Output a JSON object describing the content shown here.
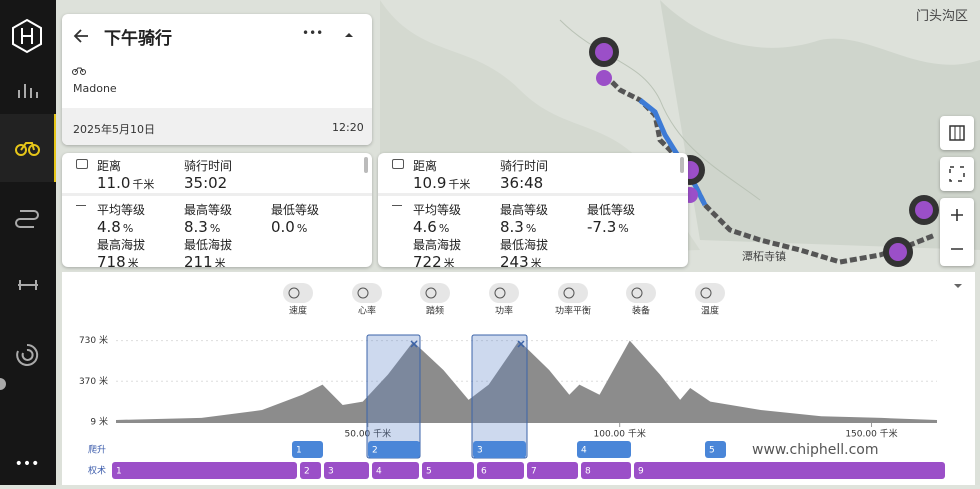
{
  "sidebar": {
    "more": "•••"
  },
  "header": {
    "title": "下午骑行",
    "bike": "Madone",
    "date": "2025年5月10日",
    "time": "12:20",
    "menu": "•••"
  },
  "stats_cards": [
    {
      "items": [
        {
          "label": "距离",
          "value": "11.0",
          "unit": "千米"
        },
        {
          "label": "骑行时间",
          "value": "35:02"
        },
        {
          "label": "平均等级",
          "value": "4.8",
          "unit": "%"
        },
        {
          "label": "最高等级",
          "value": "8.3",
          "unit": "%"
        },
        {
          "label": "最低等级",
          "value": "0.0",
          "unit": "%"
        },
        {
          "label": "最高海拔",
          "value": "718",
          "unit": "米"
        },
        {
          "label": "最低海拔",
          "value": "211",
          "unit": "米"
        }
      ]
    },
    {
      "items": [
        {
          "label": "距离",
          "value": "10.9",
          "unit": "千米"
        },
        {
          "label": "骑行时间",
          "value": "36:48"
        },
        {
          "label": "平均等级",
          "value": "4.6",
          "unit": "%"
        },
        {
          "label": "最高等级",
          "value": "8.3",
          "unit": "%"
        },
        {
          "label": "最低等级",
          "value": "-7.3",
          "unit": "%"
        },
        {
          "label": "最高海拔",
          "value": "722",
          "unit": "米"
        },
        {
          "label": "最低海拔",
          "value": "243",
          "unit": "米"
        }
      ]
    }
  ],
  "map": {
    "labels": [
      "门头沟区",
      "潭柘寺镇"
    ]
  },
  "metric_tabs": [
    "速度",
    "心率",
    "踏频",
    "功率",
    "功率平衡",
    "装备",
    "温度"
  ],
  "chart_data": {
    "type": "area",
    "x": [
      0,
      17,
      29,
      37,
      41,
      45,
      49,
      54,
      59,
      65,
      70,
      74,
      80,
      86,
      90,
      92,
      96,
      102,
      108,
      112,
      114,
      118,
      128,
      140,
      152,
      163
    ],
    "series": [
      {
        "color": "#8c8c8c",
        "values": [
          27,
          45,
          115,
          250,
          340,
          160,
          190,
          430,
          720,
          470,
          205,
          340,
          730,
          470,
          250,
          340,
          250,
          730,
          430,
          205,
          310,
          190,
          115,
          60,
          45,
          27
        ]
      }
    ],
    "xlim": [
      0,
      163
    ],
    "ylim": [
      0,
      780
    ],
    "yticks": [
      {
        "value": 730,
        "label": "730 米"
      },
      {
        "value": 370,
        "label": "370 米"
      },
      {
        "value": 9,
        "label": "9 米"
      }
    ],
    "xticks": [
      {
        "value": 50,
        "label": "50.00 千米"
      },
      {
        "value": 100,
        "label": "100.00 千米"
      },
      {
        "value": 150,
        "label": "150.00 千米"
      }
    ],
    "grid": true
  },
  "climbs": {
    "label": "爬升",
    "items": [
      "1",
      "2",
      "3",
      "4",
      "5"
    ]
  },
  "segments": {
    "label": "权术",
    "items": [
      "1",
      "2",
      "3",
      "4",
      "5",
      "6",
      "7",
      "8",
      "9"
    ]
  },
  "watermark": "www.chiphell.com"
}
